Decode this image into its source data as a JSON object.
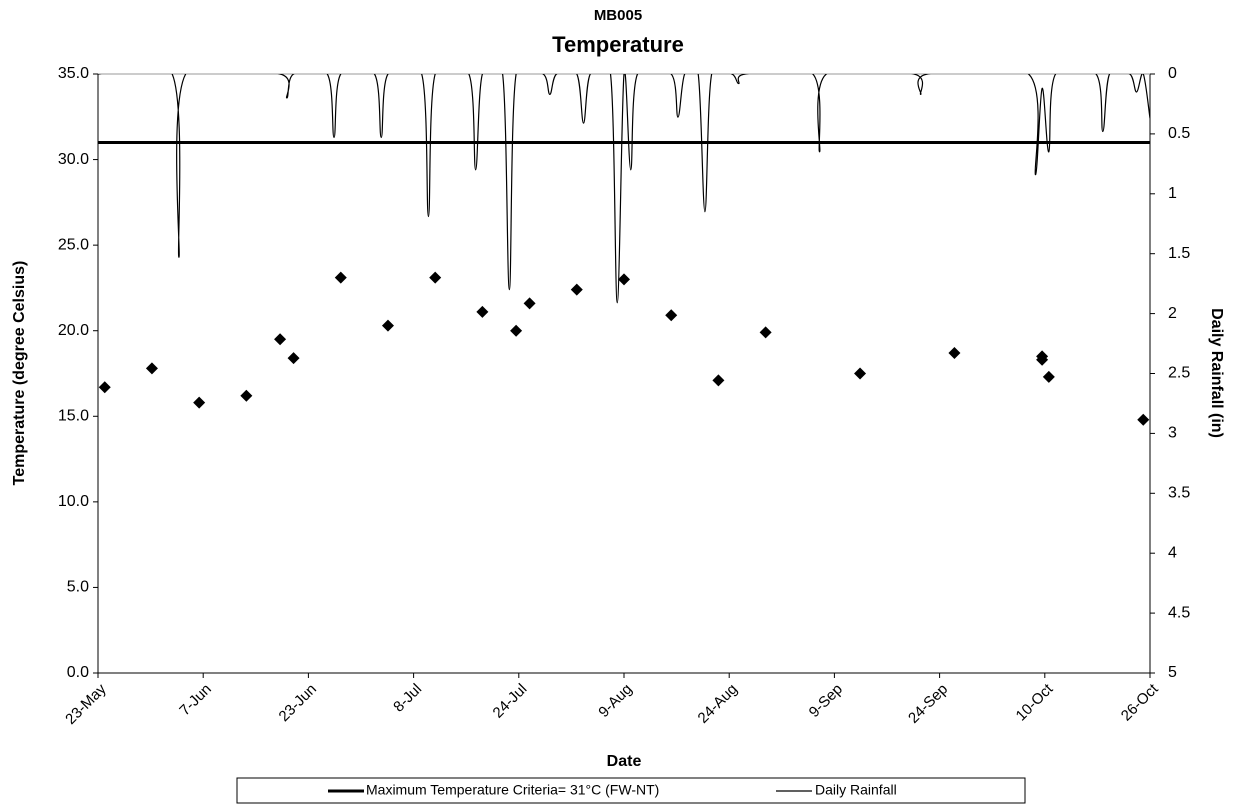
{
  "chart_data": {
    "type": "scatter",
    "subtitle": "MB005",
    "title": "Temperature",
    "x_label": "Date",
    "y_label": "Temperature (degree Celsius)",
    "y2_label": "Daily Rainfall (in)",
    "xlim": [
      0,
      156
    ],
    "xticks": [
      {
        "value": 0,
        "label": "23-May"
      },
      {
        "value": 15.6,
        "label": "7-Jun"
      },
      {
        "value": 31.2,
        "label": "23-Jun"
      },
      {
        "value": 46.8,
        "label": "8-Jul"
      },
      {
        "value": 62.4,
        "label": "24-Jul"
      },
      {
        "value": 78,
        "label": "9-Aug"
      },
      {
        "value": 93.6,
        "label": "24-Aug"
      },
      {
        "value": 109.2,
        "label": "9-Sep"
      },
      {
        "value": 124.8,
        "label": "24-Sep"
      },
      {
        "value": 140.4,
        "label": "10-Oct"
      },
      {
        "value": 156,
        "label": "26-Oct"
      }
    ],
    "ylim": [
      0,
      35
    ],
    "yticks": [
      {
        "value": 0,
        "label": "0.0"
      },
      {
        "value": 5,
        "label": "5.0"
      },
      {
        "value": 10,
        "label": "10.0"
      },
      {
        "value": 15,
        "label": "15.0"
      },
      {
        "value": 20,
        "label": "20.0"
      },
      {
        "value": 25,
        "label": "25.0"
      },
      {
        "value": 30,
        "label": "30.0"
      },
      {
        "value": 35,
        "label": "35.0"
      }
    ],
    "y2lim": [
      0,
      5
    ],
    "y2_inverted": true,
    "y2ticks": [
      0,
      0.5,
      1,
      1.5,
      2,
      2.5,
      3,
      3.5,
      4,
      4.5,
      5
    ],
    "points": {
      "color": "#000000",
      "x": [
        1,
        8,
        15,
        22,
        27,
        29,
        36,
        43,
        50,
        57,
        62,
        64,
        71,
        78,
        85,
        92,
        99,
        113,
        127,
        140,
        140,
        141,
        155
      ],
      "values": [
        16.7,
        17.8,
        15.8,
        16.2,
        19.5,
        18.4,
        23.1,
        20.3,
        23.1,
        21.1,
        20.0,
        21.6,
        22.4,
        23.0,
        20.9,
        17.1,
        19.9,
        17.5,
        18.7,
        18.5,
        18.3,
        17.3,
        14.8
      ]
    },
    "reference_line": {
      "name": "Maximum Temperature Criteria= 31°C  (FW-NT)",
      "value": 31,
      "color": "#000000"
    },
    "series": [
      {
        "name": "Daily Rainfall",
        "color": "#000000",
        "axis": "y2",
        "x": [
          0,
          11,
          12,
          13,
          27,
          28,
          29,
          34,
          35,
          36,
          41,
          42,
          43,
          48,
          49,
          50,
          55,
          56,
          57,
          60,
          61,
          62,
          66,
          67,
          68,
          71,
          72,
          73,
          76,
          77,
          78,
          79,
          80,
          85,
          86,
          87,
          89,
          90,
          91,
          94,
          95,
          96,
          106,
          107,
          108,
          121,
          122,
          123,
          138,
          139,
          140,
          141,
          142,
          148,
          149,
          150,
          153,
          154,
          155,
          156
        ],
        "values": [
          0,
          0,
          1.53,
          0,
          0,
          0.2,
          0,
          0,
          0.53,
          0,
          0,
          0.53,
          0,
          0,
          1.19,
          0,
          0,
          0.8,
          0,
          0,
          1.8,
          0,
          0,
          0.17,
          0,
          0,
          0.41,
          0,
          0,
          1.91,
          0,
          0.8,
          0,
          0,
          0.36,
          0,
          0,
          1.15,
          0,
          0,
          0.08,
          0,
          0,
          0.65,
          0,
          0,
          0.17,
          0,
          0,
          0.84,
          0.12,
          0.65,
          0,
          0,
          0.48,
          0,
          0,
          0.15,
          0,
          0.37
        ]
      }
    ]
  }
}
